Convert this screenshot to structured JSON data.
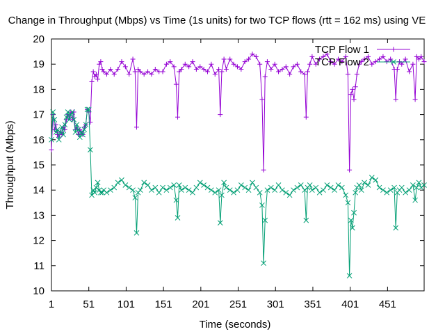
{
  "chart_data": {
    "type": "line",
    "title": "Change in Throughput (Mbps) vs Time (1s units) for two TCP flows (rtt = 162 ms) using VE",
    "xlabel": "Time (seconds)",
    "ylabel": "Throughput (Mbps)",
    "xlim": [
      1,
      500
    ],
    "ylim": [
      10,
      20
    ],
    "x_ticks": [
      1,
      51,
      101,
      151,
      201,
      251,
      301,
      351,
      401,
      451
    ],
    "y_ticks": [
      10,
      11,
      12,
      13,
      14,
      15,
      16,
      17,
      18,
      19,
      20
    ],
    "grid": false,
    "legend_position": "top-right",
    "series": [
      {
        "name": "TCP Flow 1",
        "color": "#9400d3",
        "marker": "plus",
        "x": [
          1,
          3,
          5,
          7,
          9,
          11,
          13,
          15,
          17,
          19,
          21,
          23,
          25,
          27,
          29,
          31,
          33,
          35,
          37,
          39,
          41,
          43,
          45,
          47,
          49,
          51,
          53,
          55,
          57,
          59,
          61,
          63,
          65,
          67,
          69,
          71,
          75,
          80,
          85,
          90,
          95,
          100,
          105,
          110,
          113,
          115,
          117,
          120,
          125,
          130,
          135,
          140,
          145,
          150,
          155,
          160,
          165,
          168,
          170,
          172,
          175,
          180,
          185,
          190,
          195,
          200,
          205,
          210,
          215,
          220,
          225,
          227,
          229,
          232,
          235,
          240,
          245,
          250,
          255,
          260,
          265,
          270,
          275,
          280,
          283,
          285,
          287,
          290,
          295,
          300,
          305,
          310,
          315,
          320,
          325,
          330,
          335,
          340,
          342,
          344,
          347,
          350,
          355,
          360,
          365,
          370,
          375,
          380,
          385,
          390,
          395,
          398,
          400,
          402,
          404,
          406,
          408,
          410,
          413,
          416,
          420,
          425,
          430,
          435,
          440,
          445,
          450,
          455,
          460,
          462,
          464,
          467,
          470,
          475,
          480,
          485,
          488,
          490,
          493,
          496,
          500
        ],
        "values": [
          15.6,
          17.0,
          16.4,
          16.6,
          16.2,
          16.1,
          16.3,
          16.2,
          16.5,
          16.4,
          16.8,
          17.0,
          16.9,
          17.1,
          16.8,
          17.1,
          16.4,
          16.5,
          16.2,
          16.4,
          16.3,
          16.2,
          16.5,
          16.6,
          17.2,
          17.1,
          16.7,
          18.3,
          18.7,
          18.5,
          18.6,
          18.4,
          19.0,
          19.1,
          18.8,
          18.7,
          18.6,
          18.8,
          18.6,
          18.8,
          19.1,
          18.9,
          18.6,
          19.2,
          18.7,
          16.5,
          18.8,
          18.7,
          18.6,
          18.7,
          18.6,
          18.8,
          18.7,
          18.7,
          19.0,
          19.1,
          18.9,
          18.2,
          16.9,
          18.7,
          18.8,
          19.0,
          18.9,
          19.1,
          18.8,
          18.9,
          18.8,
          18.7,
          19.0,
          18.6,
          18.8,
          17.0,
          18.7,
          19.2,
          18.8,
          19.2,
          19.0,
          18.9,
          18.8,
          19.1,
          19.2,
          19.4,
          19.3,
          19.0,
          17.6,
          14.8,
          18.5,
          19.1,
          18.8,
          19.0,
          18.7,
          18.8,
          18.9,
          18.6,
          18.9,
          19.0,
          18.7,
          18.6,
          16.9,
          18.7,
          19.0,
          19.3,
          19.0,
          19.2,
          19.3,
          19.4,
          19.1,
          19.0,
          19.2,
          19.1,
          19.3,
          18.6,
          14.8,
          17.8,
          18.0,
          17.6,
          18.1,
          18.6,
          19.0,
          19.1,
          19.2,
          19.3,
          19.0,
          19.1,
          19.2,
          19.3,
          19.1,
          19.2,
          18.8,
          17.6,
          18.8,
          19.1,
          19.0,
          19.2,
          18.7,
          19.0,
          17.6,
          19.3,
          19.2,
          19.3,
          19.1
        ]
      },
      {
        "name": "TCP Flow 2",
        "color": "#009e73",
        "marker": "cross",
        "x": [
          1,
          3,
          5,
          7,
          9,
          11,
          13,
          15,
          17,
          19,
          21,
          23,
          25,
          27,
          29,
          31,
          33,
          35,
          37,
          39,
          41,
          43,
          45,
          47,
          49,
          51,
          53,
          55,
          57,
          59,
          61,
          63,
          65,
          67,
          69,
          71,
          75,
          80,
          85,
          90,
          95,
          100,
          105,
          110,
          113,
          115,
          117,
          120,
          125,
          130,
          135,
          140,
          145,
          150,
          155,
          160,
          165,
          168,
          170,
          172,
          175,
          180,
          185,
          190,
          195,
          200,
          205,
          210,
          215,
          220,
          225,
          227,
          229,
          232,
          235,
          240,
          245,
          250,
          255,
          260,
          265,
          270,
          275,
          280,
          283,
          285,
          287,
          290,
          295,
          300,
          305,
          310,
          315,
          320,
          325,
          330,
          335,
          340,
          342,
          344,
          347,
          350,
          355,
          360,
          365,
          370,
          375,
          380,
          385,
          390,
          395,
          398,
          400,
          402,
          404,
          406,
          408,
          410,
          413,
          416,
          420,
          425,
          430,
          435,
          440,
          445,
          450,
          455,
          460,
          462,
          464,
          467,
          470,
          475,
          480,
          485,
          488,
          490,
          493,
          496,
          500
        ],
        "values": [
          16.0,
          17.1,
          16.8,
          16.3,
          16.4,
          16.0,
          16.3,
          16.5,
          16.2,
          16.6,
          16.9,
          17.1,
          16.8,
          17.0,
          17.1,
          16.8,
          16.3,
          16.6,
          16.4,
          16.1,
          16.3,
          16.2,
          16.4,
          16.6,
          17.2,
          17.2,
          15.6,
          13.8,
          14.0,
          13.9,
          14.1,
          14.3,
          14.0,
          13.9,
          13.9,
          14.0,
          13.9,
          14.0,
          14.1,
          14.3,
          14.4,
          14.2,
          14.1,
          14.0,
          13.7,
          12.3,
          13.9,
          14.0,
          14.3,
          14.2,
          14.0,
          14.1,
          13.9,
          14.1,
          14.0,
          14.1,
          14.2,
          13.6,
          12.9,
          14.2,
          14.0,
          14.1,
          14.0,
          13.9,
          14.1,
          14.3,
          14.2,
          14.1,
          14.0,
          13.9,
          14.0,
          12.7,
          13.8,
          14.3,
          14.1,
          14.0,
          13.9,
          14.0,
          14.2,
          14.1,
          14.0,
          14.3,
          14.1,
          13.9,
          13.4,
          11.1,
          12.8,
          14.0,
          14.1,
          14.0,
          14.2,
          14.0,
          13.9,
          13.8,
          14.0,
          14.1,
          14.2,
          14.0,
          12.8,
          14.1,
          14.2,
          14.0,
          14.1,
          13.9,
          14.0,
          14.2,
          14.1,
          14.0,
          14.2,
          14.1,
          13.8,
          13.5,
          10.6,
          12.8,
          12.5,
          13.1,
          13.9,
          14.1,
          14.2,
          14.0,
          14.3,
          14.2,
          14.5,
          14.4,
          14.1,
          14.0,
          13.9,
          14.0,
          14.1,
          12.5,
          13.9,
          14.0,
          14.1,
          13.9,
          14.0,
          14.2,
          13.6,
          14.1,
          14.3,
          14.1,
          14.2
        ]
      }
    ]
  }
}
